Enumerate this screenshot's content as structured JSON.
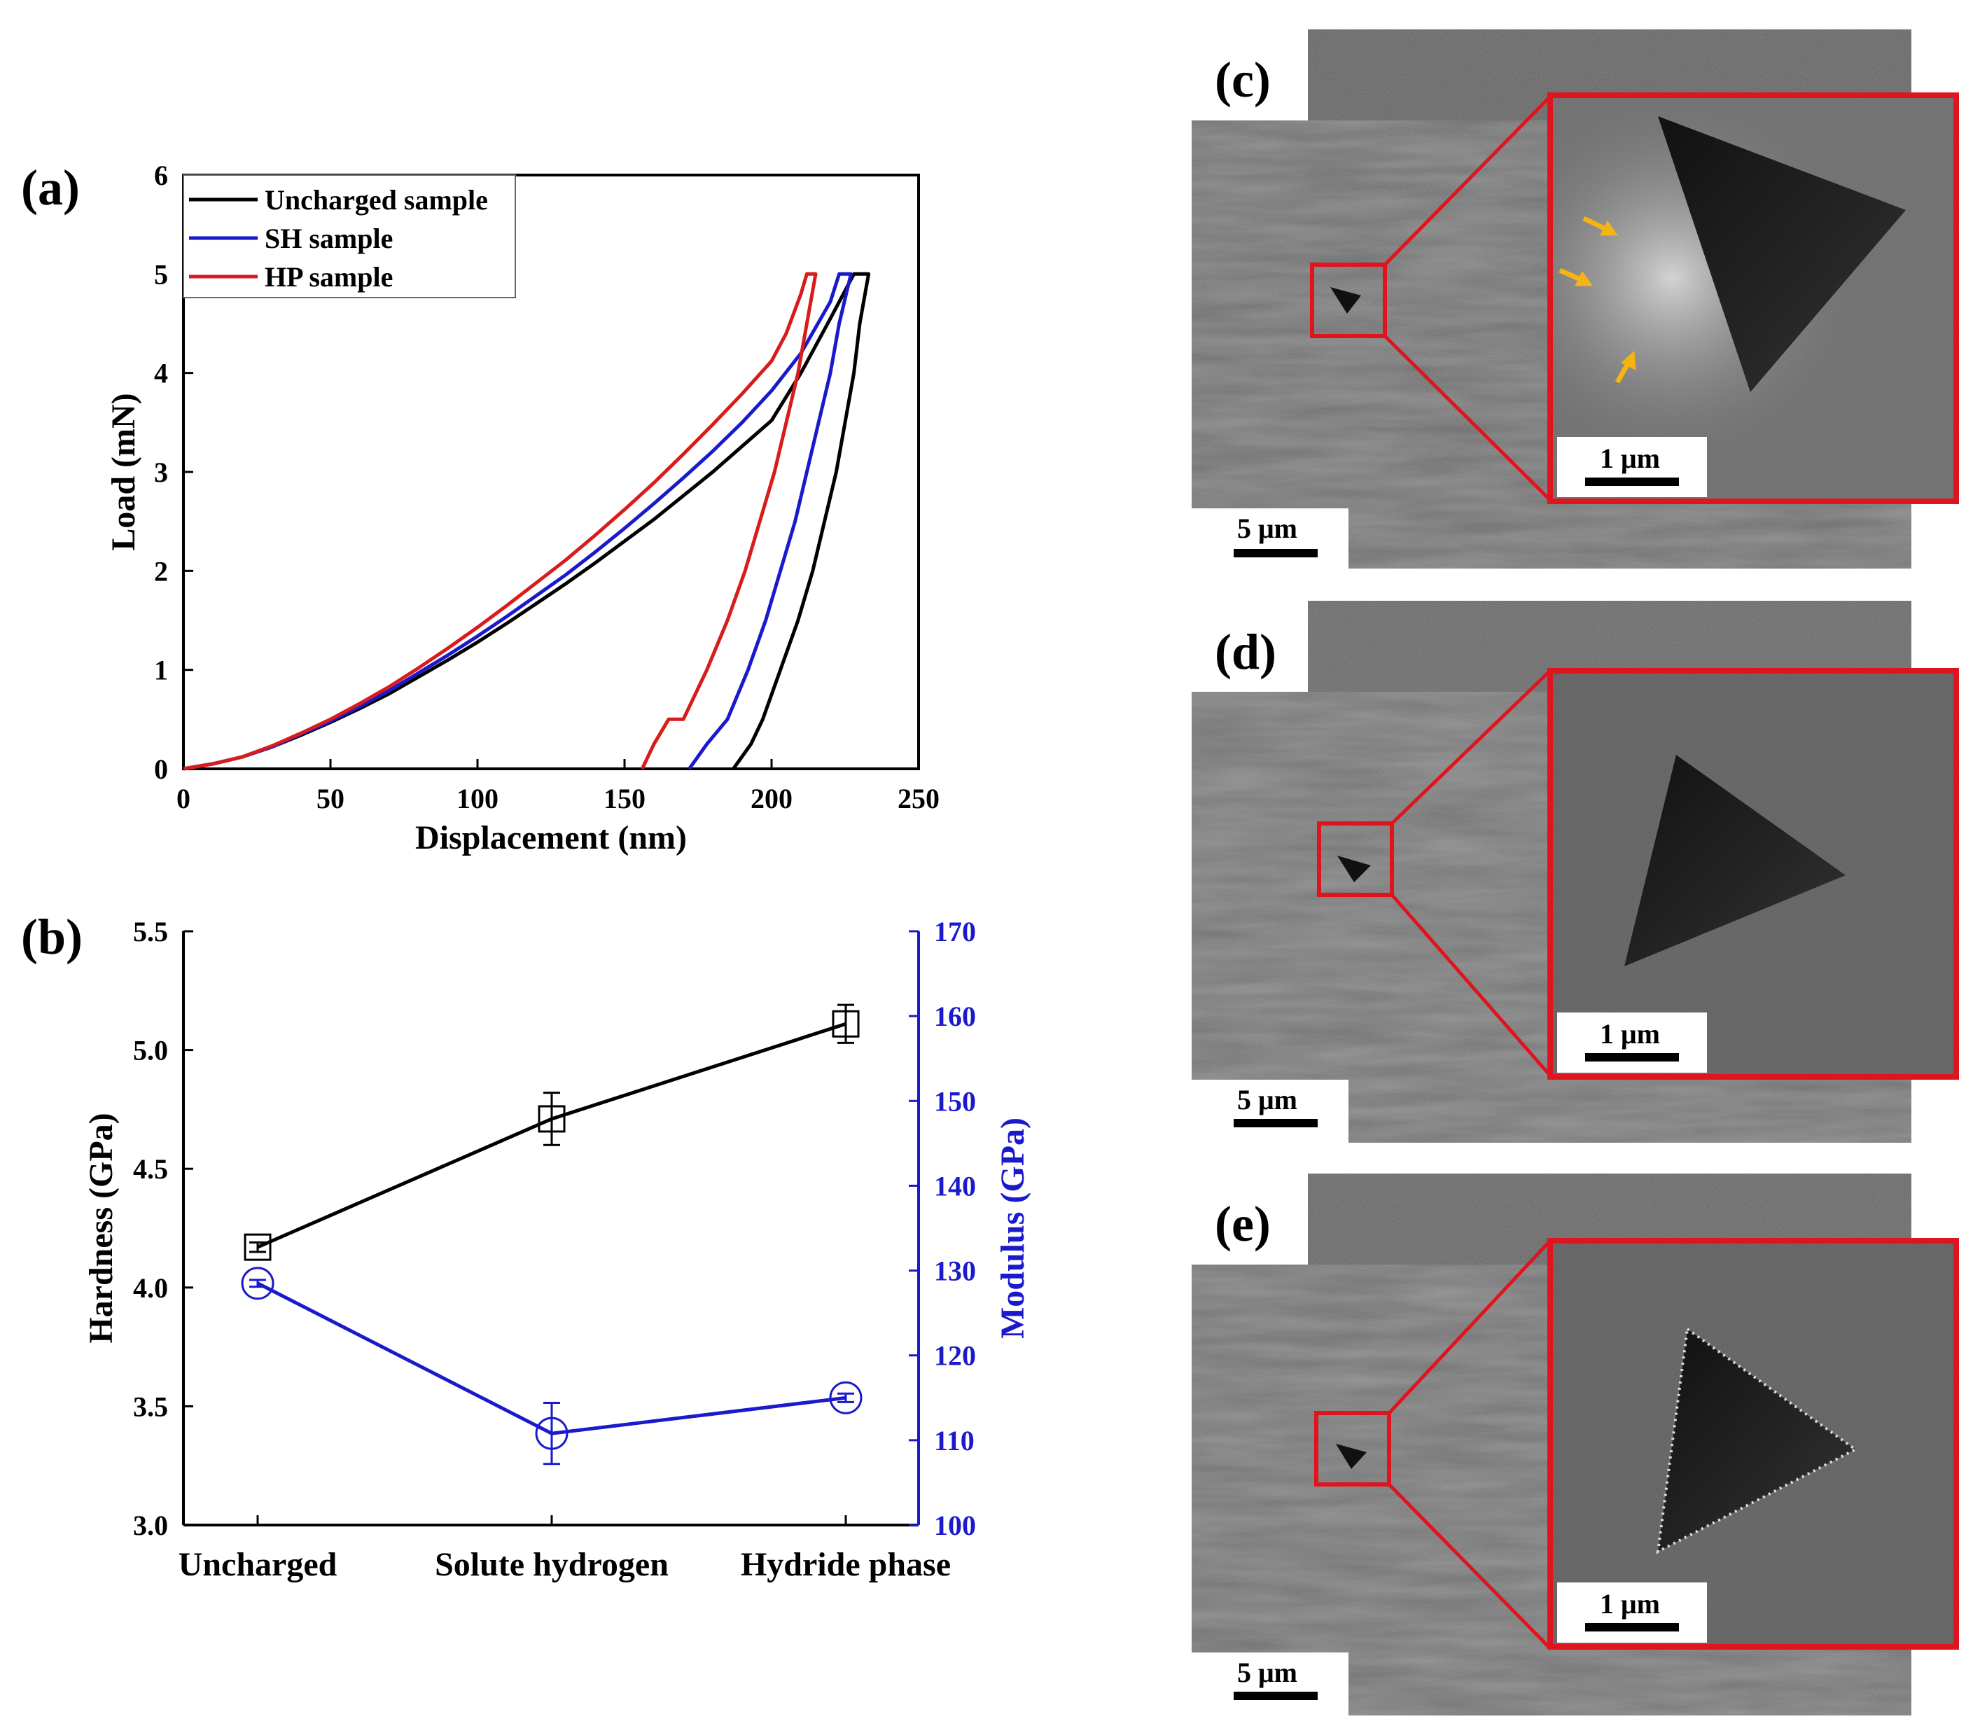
{
  "colors": {
    "uncharged": "#000000",
    "sh": "#1a1acc",
    "hp": "#d81c1c",
    "modulus": "#1a1acc",
    "inset_border": "#e0141e",
    "arrow": "#f5b414"
  },
  "chart_data": [
    {
      "panel": "(a)",
      "type": "line",
      "xlabel": "Displacement (nm)",
      "ylabel": "Load (mN)",
      "xlim": [
        0,
        250
      ],
      "ylim": [
        0,
        6
      ],
      "xticks": [
        0,
        50,
        100,
        150,
        200,
        250
      ],
      "yticks": [
        0,
        1,
        2,
        3,
        4,
        5,
        6
      ],
      "legend_position": "top-left",
      "series": [
        {
          "name": "Uncharged sample",
          "color_key": "uncharged",
          "loading": [
            [
              0,
              0
            ],
            [
              10,
              0.05
            ],
            [
              20,
              0.12
            ],
            [
              30,
              0.22
            ],
            [
              40,
              0.34
            ],
            [
              50,
              0.47
            ],
            [
              60,
              0.61
            ],
            [
              70,
              0.76
            ],
            [
              80,
              0.93
            ],
            [
              90,
              1.1
            ],
            [
              100,
              1.28
            ],
            [
              110,
              1.47
            ],
            [
              120,
              1.67
            ],
            [
              130,
              1.87
            ],
            [
              140,
              2.08
            ],
            [
              150,
              2.3
            ],
            [
              160,
              2.52
            ],
            [
              170,
              2.76
            ],
            [
              180,
              3.0
            ],
            [
              190,
              3.26
            ],
            [
              200,
              3.52
            ],
            [
              210,
              4.0
            ],
            [
              220,
              4.55
            ],
            [
              228,
              5.0
            ]
          ],
          "hold": [
            [
              228,
              5.0
            ],
            [
              233,
              5.0
            ]
          ],
          "unloading": [
            [
              233,
              5.0
            ],
            [
              230,
              4.5
            ],
            [
              228,
              4.0
            ],
            [
              225,
              3.5
            ],
            [
              222,
              3.0
            ],
            [
              218,
              2.5
            ],
            [
              214,
              2.0
            ],
            [
              209,
              1.5
            ],
            [
              203,
              1.0
            ],
            [
              197,
              0.5
            ],
            [
              193,
              0.25
            ],
            [
              187,
              0.0
            ]
          ]
        },
        {
          "name": "SH sample",
          "color_key": "sh",
          "loading": [
            [
              0,
              0
            ],
            [
              10,
              0.05
            ],
            [
              20,
              0.12
            ],
            [
              30,
              0.22
            ],
            [
              40,
              0.35
            ],
            [
              50,
              0.48
            ],
            [
              60,
              0.63
            ],
            [
              70,
              0.79
            ],
            [
              80,
              0.97
            ],
            [
              90,
              1.15
            ],
            [
              100,
              1.34
            ],
            [
              110,
              1.54
            ],
            [
              120,
              1.75
            ],
            [
              130,
              1.96
            ],
            [
              140,
              2.19
            ],
            [
              150,
              2.43
            ],
            [
              160,
              2.68
            ],
            [
              170,
              2.94
            ],
            [
              180,
              3.21
            ],
            [
              190,
              3.5
            ],
            [
              200,
              3.82
            ],
            [
              210,
              4.2
            ],
            [
              220,
              4.72
            ],
            [
              223,
              5.0
            ]
          ],
          "hold": [
            [
              223,
              5.0
            ],
            [
              227,
              5.0
            ]
          ],
          "unloading": [
            [
              227,
              5.0
            ],
            [
              223,
              4.5
            ],
            [
              220,
              4.0
            ],
            [
              216,
              3.5
            ],
            [
              212,
              3.0
            ],
            [
              208,
              2.5
            ],
            [
              203,
              2.0
            ],
            [
              198,
              1.5
            ],
            [
              192,
              1.0
            ],
            [
              185,
              0.5
            ],
            [
              178,
              0.25
            ],
            [
              172,
              0.0
            ]
          ]
        },
        {
          "name": "HP sample",
          "color_key": "hp",
          "loading": [
            [
              0,
              0
            ],
            [
              10,
              0.05
            ],
            [
              20,
              0.12
            ],
            [
              30,
              0.23
            ],
            [
              40,
              0.36
            ],
            [
              50,
              0.5
            ],
            [
              60,
              0.66
            ],
            [
              70,
              0.83
            ],
            [
              80,
              1.02
            ],
            [
              90,
              1.22
            ],
            [
              100,
              1.43
            ],
            [
              110,
              1.65
            ],
            [
              120,
              1.88
            ],
            [
              130,
              2.11
            ],
            [
              140,
              2.36
            ],
            [
              150,
              2.62
            ],
            [
              160,
              2.89
            ],
            [
              170,
              3.18
            ],
            [
              180,
              3.48
            ],
            [
              190,
              3.79
            ],
            [
              200,
              4.12
            ],
            [
              205,
              4.4
            ],
            [
              210,
              4.8
            ],
            [
              212,
              5.0
            ]
          ],
          "hold": [
            [
              212,
              5.0
            ],
            [
              215,
              5.0
            ]
          ],
          "unloading": [
            [
              215,
              5.0
            ],
            [
              212,
              4.5
            ],
            [
              209,
              4.0
            ],
            [
              205,
              3.5
            ],
            [
              201,
              3.0
            ],
            [
              196,
              2.5
            ],
            [
              191,
              2.0
            ],
            [
              185,
              1.5
            ],
            [
              178,
              1.0
            ],
            [
              170,
              0.5
            ],
            [
              165,
              0.5
            ],
            [
              160,
              0.25
            ],
            [
              156,
              0.0
            ]
          ]
        }
      ]
    },
    {
      "panel": "(b)",
      "type": "line",
      "categories": [
        "Uncharged",
        "Solute hydrogen",
        "Hydride phase"
      ],
      "left_axis": {
        "label": "Hardness (GPa)",
        "ylim": [
          3.0,
          5.5
        ],
        "ticks": [
          "3.0",
          "3.5",
          "4.0",
          "4.5",
          "5.0",
          "5.5"
        ]
      },
      "right_axis": {
        "label": "Modulus (GPa)",
        "ylim": [
          100,
          170
        ],
        "ticks": [
          "100",
          "110",
          "120",
          "130",
          "140",
          "150",
          "160",
          "170"
        ]
      },
      "series": [
        {
          "name": "Hardness",
          "axis": "left",
          "marker": "square",
          "color_key": "uncharged",
          "values": [
            4.17,
            4.71,
            5.11
          ],
          "errors": [
            0.02,
            0.11,
            0.08
          ]
        },
        {
          "name": "Modulus",
          "axis": "right",
          "marker": "circle",
          "color_key": "modulus",
          "values": [
            128.5,
            110.8,
            115.0
          ],
          "errors": [
            0.4,
            3.6,
            0.5
          ]
        }
      ]
    }
  ],
  "panels": {
    "a": {
      "label": "(a)"
    },
    "b": {
      "label": "(b)"
    },
    "c": {
      "label": "(c)",
      "scale_main": "5 μm",
      "scale_inset": "1 μm"
    },
    "d": {
      "label": "(d)",
      "scale_main": "5 μm",
      "scale_inset": "1 μm"
    },
    "e": {
      "label": "(e)",
      "scale_main": "5 μm",
      "scale_inset": "1 μm"
    }
  }
}
